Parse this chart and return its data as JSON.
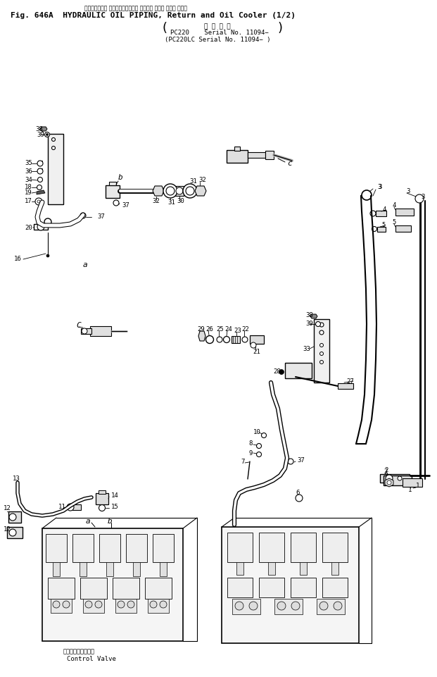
{
  "bg_color": "#ffffff",
  "line_color": "#000000",
  "title_jp": "ハイドロリック オイルパイピング、 リターン および オイル クーラ",
  "title1": "Fig. 646A  HYDRAULIC OIL PIPING, Return and Oil Cooler (1/2)",
  "serial_header": "適 用 号 機",
  "serial1": "PC220    Serial No. 11094−",
  "serial2": "(PC220LC Serial No. 11094− )",
  "fig_width": 6.21,
  "fig_height": 9.61,
  "dpi": 100
}
